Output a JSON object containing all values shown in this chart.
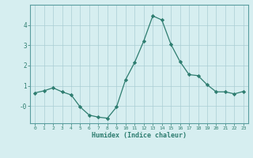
{
  "x": [
    0,
    1,
    2,
    3,
    4,
    5,
    6,
    7,
    8,
    9,
    10,
    11,
    12,
    13,
    14,
    15,
    16,
    17,
    18,
    19,
    20,
    21,
    22,
    23
  ],
  "y": [
    0.65,
    0.75,
    0.9,
    0.7,
    0.55,
    -0.05,
    -0.45,
    -0.55,
    -0.6,
    -0.05,
    1.3,
    2.15,
    3.2,
    4.45,
    4.25,
    3.05,
    2.2,
    1.55,
    1.5,
    1.05,
    0.7,
    0.7,
    0.6,
    0.72
  ],
  "line_color": "#2e7d70",
  "marker": "D",
  "marker_size": 2.2,
  "bg_color": "#d6eef0",
  "grid_color": "#aacdd4",
  "xlabel": "Humidex (Indice chaleur)",
  "xlabel_color": "#2e7d70",
  "tick_color": "#2e7d70",
  "axis_color": "#5a9ea0",
  "ylim": [
    -0.85,
    5.0
  ],
  "xlim": [
    -0.5,
    23.5
  ],
  "yticks": [
    0,
    1,
    2,
    3,
    4
  ],
  "xtick_labels": [
    "0",
    "1",
    "2",
    "3",
    "4",
    "5",
    "6",
    "7",
    "8",
    "9",
    "10",
    "11",
    "12",
    "13",
    "14",
    "15",
    "16",
    "17",
    "18",
    "19",
    "20",
    "21",
    "22",
    "23"
  ]
}
